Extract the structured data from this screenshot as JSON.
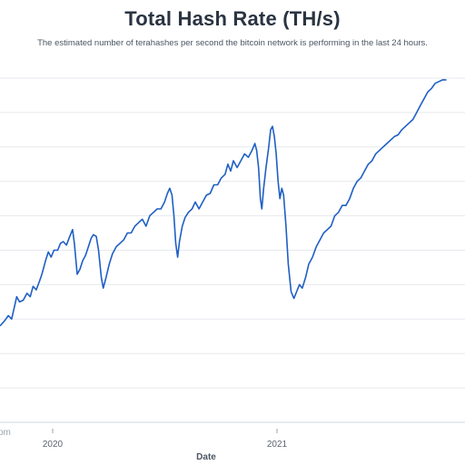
{
  "title": "Total Hash Rate (TH/s)",
  "subtitle": "The estimated number of terahashes per second the bitcoin network is performing in the last 24 hours.",
  "watermark": "om",
  "chart_data": {
    "type": "line",
    "title": "Total Hash Rate (TH/s)",
    "subtitle": "The estimated number of terahashes per second the bitcoin network is performing in the last 24 hours.",
    "xlabel": "Date",
    "ylabel": "",
    "x_ticks": [
      "2020",
      "2021"
    ],
    "gridlines": 10,
    "line_color": "#1f5fc4",
    "grid_color": "#e6e9ee",
    "series": [
      {
        "values": [
          [
            0.0,
            0.28
          ],
          [
            0.01,
            0.295
          ],
          [
            0.018,
            0.31
          ],
          [
            0.025,
            0.3
          ],
          [
            0.03,
            0.33
          ],
          [
            0.036,
            0.365
          ],
          [
            0.042,
            0.35
          ],
          [
            0.05,
            0.355
          ],
          [
            0.058,
            0.375
          ],
          [
            0.065,
            0.365
          ],
          [
            0.071,
            0.395
          ],
          [
            0.078,
            0.385
          ],
          [
            0.085,
            0.41
          ],
          [
            0.09,
            0.43
          ],
          [
            0.098,
            0.47
          ],
          [
            0.104,
            0.495
          ],
          [
            0.11,
            0.48
          ],
          [
            0.116,
            0.5
          ],
          [
            0.124,
            0.5
          ],
          [
            0.13,
            0.52
          ],
          [
            0.136,
            0.525
          ],
          [
            0.143,
            0.515
          ],
          [
            0.15,
            0.54
          ],
          [
            0.156,
            0.56
          ],
          [
            0.16,
            0.52
          ],
          [
            0.166,
            0.43
          ],
          [
            0.172,
            0.445
          ],
          [
            0.178,
            0.47
          ],
          [
            0.184,
            0.485
          ],
          [
            0.19,
            0.51
          ],
          [
            0.196,
            0.535
          ],
          [
            0.201,
            0.545
          ],
          [
            0.207,
            0.54
          ],
          [
            0.212,
            0.5
          ],
          [
            0.218,
            0.42
          ],
          [
            0.222,
            0.39
          ],
          [
            0.228,
            0.42
          ],
          [
            0.235,
            0.46
          ],
          [
            0.242,
            0.49
          ],
          [
            0.25,
            0.51
          ],
          [
            0.258,
            0.52
          ],
          [
            0.266,
            0.53
          ],
          [
            0.274,
            0.55
          ],
          [
            0.282,
            0.55
          ],
          [
            0.29,
            0.57
          ],
          [
            0.298,
            0.58
          ],
          [
            0.306,
            0.59
          ],
          [
            0.314,
            0.57
          ],
          [
            0.322,
            0.6
          ],
          [
            0.33,
            0.61
          ],
          [
            0.338,
            0.62
          ],
          [
            0.346,
            0.62
          ],
          [
            0.354,
            0.64
          ],
          [
            0.36,
            0.665
          ],
          [
            0.365,
            0.68
          ],
          [
            0.37,
            0.66
          ],
          [
            0.374,
            0.6
          ],
          [
            0.378,
            0.52
          ],
          [
            0.382,
            0.48
          ],
          [
            0.386,
            0.525
          ],
          [
            0.392,
            0.57
          ],
          [
            0.398,
            0.595
          ],
          [
            0.405,
            0.61
          ],
          [
            0.413,
            0.62
          ],
          [
            0.42,
            0.64
          ],
          [
            0.428,
            0.62
          ],
          [
            0.436,
            0.64
          ],
          [
            0.444,
            0.66
          ],
          [
            0.452,
            0.665
          ],
          [
            0.46,
            0.69
          ],
          [
            0.468,
            0.69
          ],
          [
            0.476,
            0.71
          ],
          [
            0.484,
            0.72
          ],
          [
            0.49,
            0.75
          ],
          [
            0.496,
            0.73
          ],
          [
            0.502,
            0.76
          ],
          [
            0.51,
            0.74
          ],
          [
            0.518,
            0.76
          ],
          [
            0.526,
            0.78
          ],
          [
            0.534,
            0.77
          ],
          [
            0.542,
            0.79
          ],
          [
            0.548,
            0.81
          ],
          [
            0.552,
            0.79
          ],
          [
            0.556,
            0.74
          ],
          [
            0.56,
            0.65
          ],
          [
            0.563,
            0.62
          ],
          [
            0.567,
            0.68
          ],
          [
            0.572,
            0.74
          ],
          [
            0.578,
            0.8
          ],
          [
            0.582,
            0.85
          ],
          [
            0.586,
            0.86
          ],
          [
            0.59,
            0.83
          ],
          [
            0.594,
            0.78
          ],
          [
            0.598,
            0.7
          ],
          [
            0.602,
            0.65
          ],
          [
            0.606,
            0.68
          ],
          [
            0.61,
            0.66
          ],
          [
            0.615,
            0.57
          ],
          [
            0.62,
            0.46
          ],
          [
            0.626,
            0.38
          ],
          [
            0.632,
            0.36
          ],
          [
            0.638,
            0.38
          ],
          [
            0.644,
            0.4
          ],
          [
            0.65,
            0.39
          ],
          [
            0.657,
            0.42
          ],
          [
            0.664,
            0.46
          ],
          [
            0.672,
            0.48
          ],
          [
            0.68,
            0.51
          ],
          [
            0.688,
            0.53
          ],
          [
            0.696,
            0.55
          ],
          [
            0.704,
            0.56
          ],
          [
            0.712,
            0.57
          ],
          [
            0.72,
            0.6
          ],
          [
            0.728,
            0.61
          ],
          [
            0.736,
            0.63
          ],
          [
            0.744,
            0.63
          ],
          [
            0.752,
            0.65
          ],
          [
            0.76,
            0.68
          ],
          [
            0.768,
            0.7
          ],
          [
            0.776,
            0.71
          ],
          [
            0.784,
            0.73
          ],
          [
            0.792,
            0.75
          ],
          [
            0.8,
            0.76
          ],
          [
            0.808,
            0.78
          ],
          [
            0.816,
            0.79
          ],
          [
            0.824,
            0.8
          ],
          [
            0.832,
            0.81
          ],
          [
            0.84,
            0.82
          ],
          [
            0.848,
            0.83
          ],
          [
            0.856,
            0.835
          ],
          [
            0.864,
            0.85
          ],
          [
            0.872,
            0.86
          ],
          [
            0.88,
            0.87
          ],
          [
            0.888,
            0.88
          ],
          [
            0.896,
            0.9
          ],
          [
            0.904,
            0.92
          ],
          [
            0.912,
            0.94
          ],
          [
            0.92,
            0.96
          ],
          [
            0.928,
            0.97
          ],
          [
            0.936,
            0.985
          ],
          [
            0.944,
            0.99
          ],
          [
            0.952,
            0.995
          ],
          [
            0.96,
            0.995
          ]
        ]
      }
    ]
  }
}
